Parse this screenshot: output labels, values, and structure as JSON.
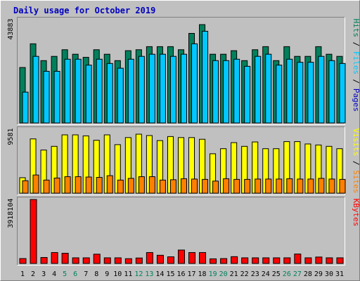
{
  "chart_data": {
    "type": "bar",
    "title": "Daily usage for October 2019",
    "days": [
      "1",
      "2",
      "3",
      "4",
      "5",
      "6",
      "7",
      "8",
      "9",
      "10",
      "11",
      "12",
      "13",
      "14",
      "15",
      "16",
      "17",
      "18",
      "19",
      "20",
      "21",
      "22",
      "23",
      "24",
      "25",
      "26",
      "27",
      "28",
      "29",
      "30",
      "31"
    ],
    "weekend_days": [
      "5",
      "6",
      "12",
      "13",
      "19",
      "20",
      "26",
      "27"
    ],
    "panels": [
      {
        "id": "pages-files-hits",
        "max_label": "43883",
        "ymax": 43883,
        "legend": [
          "Pages",
          "Files",
          "Hits"
        ],
        "legend_separator": " / ",
        "series": [
          {
            "name": "Hits",
            "color": "#00805c",
            "values": [
              23700,
              33700,
              26600,
              28400,
              31200,
              29300,
              28000,
              31200,
              29300,
              26600,
              30800,
              31200,
              32500,
              32500,
              32500,
              31200,
              38100,
              41800,
              29300,
              29300,
              30800,
              26600,
              31200,
              32500,
              26600,
              32500,
              28400,
              28400,
              32500,
              29300,
              28400
            ]
          },
          {
            "name": "Files",
            "color": "#00c8ff",
            "values": [
              13300,
              28400,
              22100,
              22100,
              27200,
              27200,
              24700,
              27200,
              25400,
              23400,
              27200,
              28400,
              29300,
              29300,
              28400,
              29300,
              33700,
              39000,
              26600,
              26600,
              27200,
              24200,
              28400,
              29300,
              24700,
              27200,
              25900,
              25900,
              28400,
              26600,
              25400
            ]
          },
          {
            "name": "Pages",
            "color": "#0000c0",
            "values": [
              0,
              0,
              0,
              0,
              0,
              0,
              0,
              0,
              0,
              0,
              0,
              0,
              0,
              0,
              0,
              0,
              0,
              0,
              0,
              0,
              0,
              0,
              0,
              0,
              0,
              0,
              0,
              0,
              0,
              0,
              0
            ]
          }
        ]
      },
      {
        "id": "visits-sites",
        "max_label": "9581",
        "ymax": 9581,
        "legend": [
          "Sites",
          "Visits"
        ],
        "legend_separator": " / ",
        "series": [
          {
            "name": "Visits",
            "color": "#ffff00",
            "values": [
              2400,
              8150,
              6500,
              7050,
              8750,
              8750,
              8600,
              7950,
              8750,
              7300,
              8350,
              8850,
              8650,
              7900,
              8500,
              8350,
              8350,
              8100,
              5950,
              6700,
              7600,
              7050,
              7700,
              6700,
              6700,
              7750,
              7750,
              7400,
              7250,
              7050,
              6700
            ]
          },
          {
            "name": "Sites",
            "color": "#ff8000",
            "values": [
              1950,
              2800,
              2050,
              2350,
              2550,
              2550,
              2500,
              2450,
              2700,
              2050,
              2300,
              2550,
              2550,
              2050,
              2100,
              2250,
              2200,
              2150,
              1900,
              2250,
              2150,
              2150,
              2200,
              2200,
              2200,
              2250,
              2200,
              2200,
              2300,
              2200,
              2150
            ]
          }
        ]
      },
      {
        "id": "kbytes",
        "max_label": "3918104",
        "ymax": 3918104,
        "legend": [
          "KBytes"
        ],
        "legend_separator": " / ",
        "series": [
          {
            "name": "KBytes",
            "color": "#ff0000",
            "values": [
              339000,
              3918104,
              404000,
              704000,
              661000,
              384000,
              384000,
              604000,
              384000,
              384000,
              332000,
              373000,
              704000,
              539000,
              445000,
              855000,
              704000,
              704000,
              322000,
              338000,
              454000,
              384000,
              384000,
              384000,
              384000,
              384000,
              614000,
              384000,
              432000,
              384000,
              384000
            ]
          }
        ]
      }
    ],
    "colors": {
      "background": "#c0c0c0",
      "plot_background": "#c0c0c0",
      "title": "#0000c0",
      "axis_text": "#000000",
      "weekend_text": "#00805c",
      "frame_light": "#ffffff",
      "frame_dark": "#808080"
    }
  }
}
